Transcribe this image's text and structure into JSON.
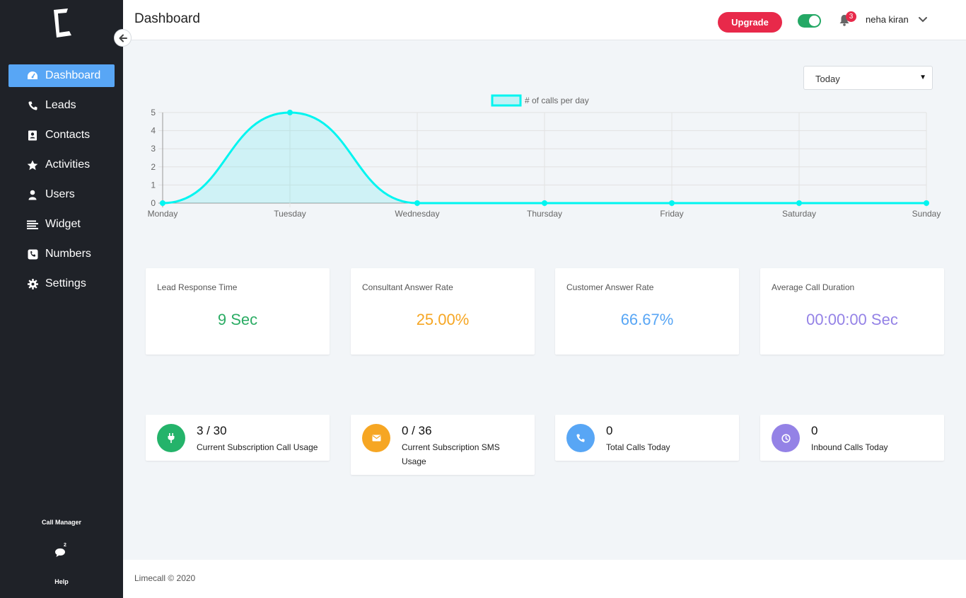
{
  "sidebar": {
    "nav_items": [
      {
        "label": "Dashboard",
        "icon": "dashboard-gauge-icon",
        "active": true
      },
      {
        "label": "Leads",
        "icon": "phone-icon"
      },
      {
        "label": "Contacts",
        "icon": "address-book-icon"
      },
      {
        "label": "Activities",
        "icon": "star-icon"
      },
      {
        "label": "Users",
        "icon": "user-icon"
      },
      {
        "label": "Widget",
        "icon": "list-icon"
      },
      {
        "label": "Numbers",
        "icon": "phone-square-icon"
      },
      {
        "label": "Settings",
        "icon": "gear-icon"
      }
    ],
    "call_manager_label": "Call Manager",
    "chat_badge": "2",
    "help_label": "Help"
  },
  "header": {
    "title": "Dashboard",
    "upgrade_label": "Upgrade",
    "notification_count": "3",
    "user_name": "neha kiran"
  },
  "filter": {
    "selected": "Today"
  },
  "chart_data": {
    "type": "area",
    "categories": [
      "Monday",
      "Tuesday",
      "Wednesday",
      "Thursday",
      "Friday",
      "Saturday",
      "Sunday"
    ],
    "series": [
      {
        "name": "# of calls per day",
        "values": [
          0,
          5,
          0,
          0,
          0,
          0,
          0
        ],
        "color": "#00f5f0"
      }
    ],
    "y_ticks": [
      "0",
      "1",
      "2",
      "3",
      "4",
      "5"
    ],
    "ylim": [
      0,
      5
    ],
    "grid": true,
    "legend_position": "top-center"
  },
  "stats": [
    {
      "label": "Lead Response Time",
      "value": "9 Sec",
      "color": "#2bac64"
    },
    {
      "label": "Consultant Answer Rate",
      "value": "25.00%",
      "color": "#f6a623"
    },
    {
      "label": "Customer Answer Rate",
      "value": "66.67%",
      "color": "#58a6f5"
    },
    {
      "label": "Average Call Duration",
      "value": "00:00:00 Sec",
      "color": "#9482e6"
    }
  ],
  "usage": [
    {
      "value": "3 / 30",
      "label": "Current Subscription Call Usage",
      "color": "#24b36a",
      "icon": "plug-icon"
    },
    {
      "value": "0 / 36",
      "label": "Current Subscription SMS Usage",
      "color": "#f6a623",
      "icon": "envelope-icon"
    },
    {
      "value": "0",
      "label": "Total Calls Today",
      "color": "#58a6f5",
      "icon": "phone-icon"
    },
    {
      "value": "0",
      "label": "Inbound Calls Today",
      "color": "#9482e6",
      "icon": "clock-icon"
    }
  ],
  "footer": {
    "text": "Limecall © 2020"
  }
}
